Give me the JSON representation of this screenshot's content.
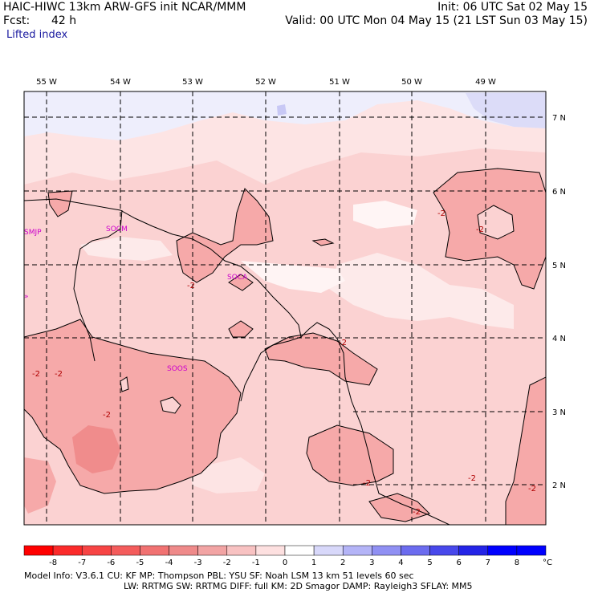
{
  "header": {
    "model_line": "HAIC-HIWC 13km ARW-GFS init    NCAR/MMM",
    "fcst_label": "Fcst:",
    "fcst_value": "42 h",
    "init_line": "Init: 06 UTC Sat 02 May 15",
    "valid_line": "Valid: 00 UTC Mon 04 May 15 (21 LST Sun 03 May 15)",
    "field_name": "Lifted index"
  },
  "map": {
    "lon_labels": [
      "55 W",
      "54 W",
      "53 W",
      "52 W",
      "51 W",
      "50 W",
      "49 W"
    ],
    "lat_labels": [
      "7 N",
      "6 N",
      "5 N",
      "4 N",
      "3 N",
      "2 N"
    ],
    "stations": [
      "SMJP",
      "SOCM",
      "SOCA",
      "SOOS"
    ],
    "contour_labels": [
      "-2",
      "-2",
      "-2",
      "-2",
      "-2",
      "-2",
      "-2",
      "-2",
      "-2",
      "-2",
      "-2"
    ],
    "left_edge_mark": "»"
  },
  "colorbar": {
    "labels": [
      "-8",
      "-7",
      "-6",
      "-5",
      "-4",
      "-3",
      "-2",
      "-1",
      "0",
      "1",
      "2",
      "3",
      "4",
      "5",
      "6",
      "7",
      "8"
    ],
    "unit": "°C",
    "colors": [
      "#ff0000",
      "#fb2a2a",
      "#f74444",
      "#f45c5c",
      "#f17272",
      "#ef8a8a",
      "#f2a4a4",
      "#f8c2c2",
      "#fde0e0",
      "#ffffff",
      "#d8d8fa",
      "#b4b4f7",
      "#9090f3",
      "#6c6cef",
      "#4848eb",
      "#2424e7",
      "#0000ff",
      "#0000ff"
    ]
  },
  "footer": {
    "line1": "Model Info: V3.6.1    CU: KF      MP: Thompson      PBL: YSU       SF: Noah LSM      13 km    51 levels    60 sec",
    "line2": "LW: RRTMG     SW: RRTMG   DIFF: full     KM: 2D Smagor DAMP: Rayleigh3   SFLAY: MM5"
  },
  "palette": {
    "base_fill": "#fbd2d2",
    "pale_fill": "#fdeaea",
    "near_zero": "#fff5f5",
    "neg2_fill": "#f6a9a9",
    "neg3_fill": "#f08c8c",
    "positive_fill": "#e6e6fb",
    "coast": "#000000"
  }
}
